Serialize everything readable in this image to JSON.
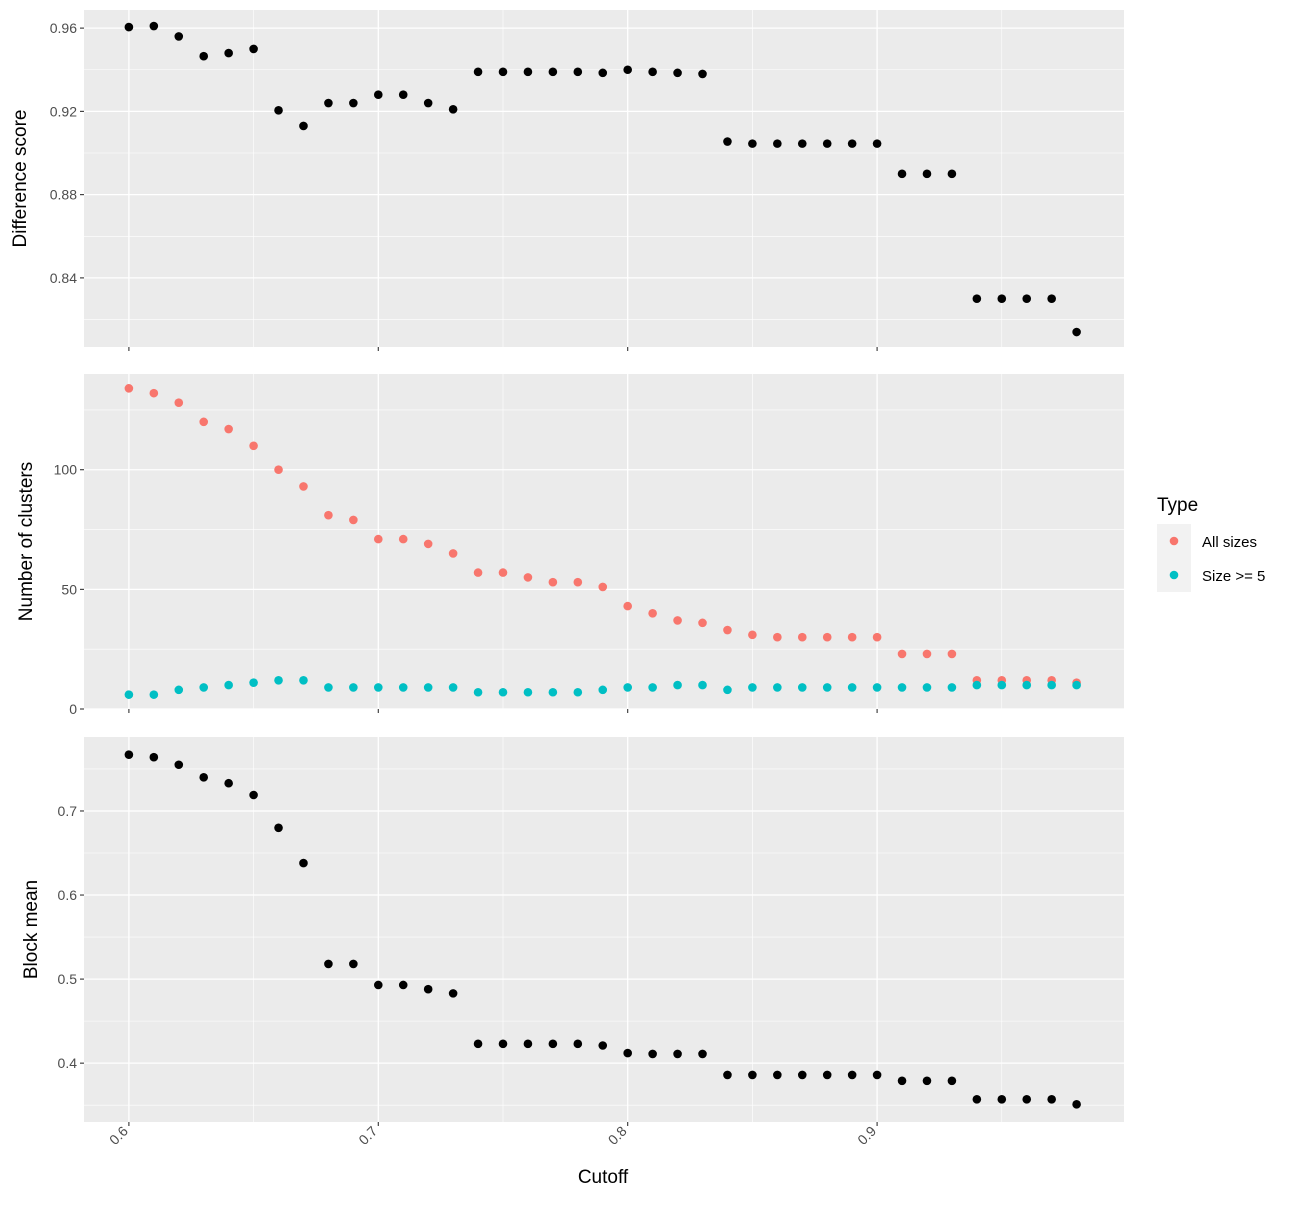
{
  "chart_data": [
    {
      "type": "scatter",
      "ylabel": "Difference score",
      "xlim": [
        0.582,
        0.999
      ],
      "ylim": [
        0.8068,
        0.9687
      ],
      "yticks": [
        0.84,
        0.88,
        0.92,
        0.96
      ],
      "yminor": [
        0.82,
        0.86,
        0.9,
        0.94
      ],
      "series": [
        {
          "name": "Difference score",
          "color": "#000000",
          "x": [
            0.6,
            0.61,
            0.62,
            0.63,
            0.64,
            0.65,
            0.66,
            0.67,
            0.68,
            0.69,
            0.7,
            0.71,
            0.72,
            0.73,
            0.74,
            0.75,
            0.76,
            0.77,
            0.78,
            0.79,
            0.8,
            0.81,
            0.82,
            0.83,
            0.84,
            0.85,
            0.86,
            0.87,
            0.88,
            0.89,
            0.9,
            0.91,
            0.92,
            0.93,
            0.94,
            0.95,
            0.96,
            0.97,
            0.98
          ],
          "y": [
            0.9605,
            0.961,
            0.956,
            0.9465,
            0.948,
            0.95,
            0.9205,
            0.913,
            0.924,
            0.924,
            0.928,
            0.928,
            0.924,
            0.921,
            0.939,
            0.939,
            0.939,
            0.939,
            0.939,
            0.9385,
            0.94,
            0.939,
            0.9385,
            0.938,
            0.9055,
            0.9045,
            0.9045,
            0.9045,
            0.9045,
            0.9045,
            0.9045,
            0.89,
            0.89,
            0.89,
            0.83,
            0.83,
            0.83,
            0.83,
            0.814
          ]
        }
      ]
    },
    {
      "type": "scatter",
      "ylabel": "Number of clusters",
      "xlim": [
        0.582,
        0.999
      ],
      "ylim": [
        0,
        140
      ],
      "yticks": [
        0,
        50,
        100
      ],
      "yminor": [
        25,
        75,
        125
      ],
      "series": [
        {
          "name": "All sizes",
          "color": "#F8766D",
          "x": [
            0.6,
            0.61,
            0.62,
            0.63,
            0.64,
            0.65,
            0.66,
            0.67,
            0.68,
            0.69,
            0.7,
            0.71,
            0.72,
            0.73,
            0.74,
            0.75,
            0.76,
            0.77,
            0.78,
            0.79,
            0.8,
            0.81,
            0.82,
            0.83,
            0.84,
            0.85,
            0.86,
            0.87,
            0.88,
            0.89,
            0.9,
            0.91,
            0.92,
            0.93,
            0.94,
            0.95,
            0.96,
            0.97,
            0.98
          ],
          "y": [
            134,
            132,
            128,
            120,
            117,
            110,
            100,
            93,
            81,
            79,
            71,
            71,
            69,
            65,
            57,
            57,
            55,
            53,
            53,
            51,
            43,
            40,
            37,
            36,
            33,
            31,
            30,
            30,
            30,
            30,
            30,
            23,
            23,
            23,
            12,
            12,
            12,
            12,
            11
          ]
        },
        {
          "name": "Size >= 5",
          "color": "#00BFC4",
          "x": [
            0.6,
            0.61,
            0.62,
            0.63,
            0.64,
            0.65,
            0.66,
            0.67,
            0.68,
            0.69,
            0.7,
            0.71,
            0.72,
            0.73,
            0.74,
            0.75,
            0.76,
            0.77,
            0.78,
            0.79,
            0.8,
            0.81,
            0.82,
            0.83,
            0.84,
            0.85,
            0.86,
            0.87,
            0.88,
            0.89,
            0.9,
            0.91,
            0.92,
            0.93,
            0.94,
            0.95,
            0.96,
            0.97,
            0.98
          ],
          "y": [
            6,
            6,
            8,
            9,
            10,
            11,
            12,
            12,
            9,
            9,
            9,
            9,
            9,
            9,
            7,
            7,
            7,
            7,
            7,
            8,
            9,
            9,
            10,
            10,
            8,
            9,
            9,
            9,
            9,
            9,
            9,
            9,
            9,
            9,
            10,
            10,
            10,
            10,
            10
          ]
        }
      ]
    },
    {
      "type": "scatter",
      "ylabel": "Block mean",
      "xlabel": "Cutoff",
      "xlim": [
        0.582,
        0.999
      ],
      "ylim": [
        0.33,
        0.788
      ],
      "yticks": [
        0.4,
        0.5,
        0.6,
        0.7
      ],
      "yminor": [
        0.35,
        0.45,
        0.55,
        0.65,
        0.75
      ],
      "series": [
        {
          "name": "Block mean",
          "color": "#000000",
          "x": [
            0.6,
            0.61,
            0.62,
            0.63,
            0.64,
            0.65,
            0.66,
            0.67,
            0.68,
            0.69,
            0.7,
            0.71,
            0.72,
            0.73,
            0.74,
            0.75,
            0.76,
            0.77,
            0.78,
            0.79,
            0.8,
            0.81,
            0.82,
            0.83,
            0.84,
            0.85,
            0.86,
            0.87,
            0.88,
            0.89,
            0.9,
            0.91,
            0.92,
            0.93,
            0.94,
            0.95,
            0.96,
            0.97,
            0.98
          ],
          "y": [
            0.767,
            0.764,
            0.755,
            0.74,
            0.733,
            0.719,
            0.68,
            0.638,
            0.518,
            0.518,
            0.493,
            0.493,
            0.488,
            0.483,
            0.423,
            0.423,
            0.423,
            0.423,
            0.423,
            0.421,
            0.412,
            0.411,
            0.411,
            0.411,
            0.386,
            0.386,
            0.386,
            0.386,
            0.386,
            0.386,
            0.386,
            0.379,
            0.379,
            0.379,
            0.357,
            0.357,
            0.357,
            0.357,
            0.351
          ]
        }
      ]
    }
  ],
  "xaxis": {
    "label": "Cutoff",
    "ticks": [
      0.6,
      0.7,
      0.8,
      0.9
    ],
    "tick_labels": [
      "0.6",
      "0.7",
      "0.8",
      "0.9"
    ],
    "minor": [
      0.65,
      0.75,
      0.85,
      0.95
    ]
  },
  "legend": {
    "title": "Type",
    "placement": "right",
    "items": [
      {
        "label": "All sizes",
        "color": "#F8766D"
      },
      {
        "label": "Size >= 5",
        "color": "#00BFC4"
      }
    ]
  }
}
